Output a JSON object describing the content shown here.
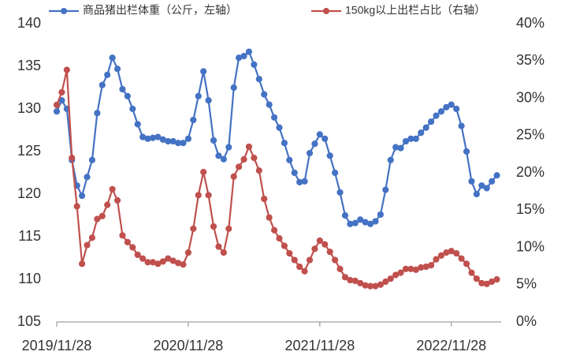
{
  "chart_data": {
    "type": "line",
    "categories": [
      "2019/11/28",
      null,
      null,
      null,
      null,
      null,
      null,
      null,
      null,
      null,
      null,
      null,
      null,
      null,
      null,
      null,
      null,
      null,
      null,
      null,
      null,
      null,
      null,
      null,
      null,
      null,
      "2020/11/28",
      null,
      null,
      null,
      null,
      null,
      null,
      null,
      null,
      null,
      null,
      null,
      null,
      null,
      null,
      null,
      null,
      null,
      null,
      null,
      null,
      null,
      null,
      null,
      null,
      null,
      "2021/11/28",
      null,
      null,
      null,
      null,
      null,
      null,
      null,
      null,
      null,
      null,
      null,
      null,
      null,
      null,
      null,
      null,
      null,
      null,
      null,
      null,
      null,
      null,
      null,
      null,
      null,
      "2022/11/28",
      null,
      null,
      null,
      null,
      null,
      null,
      null,
      null,
      null
    ],
    "series": [
      {
        "name": "商品猪出栏体重（公斤，左轴）",
        "color": "#4472c4",
        "axis": "y",
        "values": [
          129.7,
          131,
          130,
          124,
          121,
          119.8,
          122,
          124,
          129.5,
          132.8,
          134,
          136,
          134.7,
          132.3,
          131.5,
          130,
          128.2,
          126.7,
          126.5,
          126.6,
          126.7,
          126.4,
          126.2,
          126.2,
          126,
          126,
          126.5,
          128.7,
          131.5,
          134.4,
          131,
          126.3,
          124.5,
          124.1,
          125.5,
          132.5,
          136,
          136.2,
          136.7,
          135.2,
          133.5,
          131.7,
          130.5,
          129,
          127.8,
          126,
          124,
          122.5,
          121.4,
          121.5,
          124.8,
          125.9,
          127,
          126.5,
          124.5,
          122.5,
          120.2,
          117.5,
          116.5,
          116.6,
          117,
          116.7,
          116.5,
          116.8,
          117.6,
          120.5,
          124,
          125.5,
          125.4,
          126.2,
          126.5,
          126.5,
          127.2,
          127.8,
          128.5,
          129.2,
          129.7,
          130.2,
          130.5,
          130,
          128,
          125,
          121.5,
          120,
          121,
          120.7,
          121.5,
          122.2
        ]
      },
      {
        "name": "150kg以上出栏占比（右轴）",
        "color": "#c0504d",
        "axis": "y2",
        "values": [
          29.1,
          30.8,
          33.8,
          22,
          15.5,
          7.8,
          10.3,
          11.3,
          13.8,
          14.2,
          15.7,
          17.8,
          16.3,
          11.6,
          10.7,
          10,
          9,
          8.5,
          8,
          8,
          7.8,
          8.1,
          8.5,
          8.2,
          7.9,
          7.7,
          9.3,
          12.5,
          17,
          20.1,
          17,
          12.8,
          10.1,
          9.3,
          12.5,
          19.5,
          20.8,
          21.8,
          23.5,
          22,
          20.3,
          16.5,
          14,
          12.3,
          11.2,
          10.2,
          9.2,
          8.3,
          7.4,
          6.8,
          8.3,
          9.8,
          10.9,
          10.4,
          9.4,
          8.3,
          7.1,
          6,
          5.6,
          5.5,
          5.2,
          4.9,
          4.8,
          4.8,
          5,
          5.4,
          5.8,
          6.3,
          6.6,
          7.1,
          7.1,
          7,
          7.3,
          7.4,
          7.6,
          8.4,
          8.9,
          9.3,
          9.5,
          9.2,
          8.5,
          7.8,
          6.6,
          5.8,
          5.2,
          5.1,
          5.4,
          5.7
        ]
      }
    ],
    "ylim": [
      105,
      140
    ],
    "yticks": [
      105,
      110,
      115,
      120,
      125,
      130,
      135,
      140
    ],
    "y2lim": [
      0,
      40
    ],
    "y2ticks": [
      {
        "value": 0,
        "label": "0%"
      },
      {
        "value": 5,
        "label": "5%"
      },
      {
        "value": 10,
        "label": "10%"
      },
      {
        "value": 15,
        "label": "15%"
      },
      {
        "value": 20,
        "label": "20%"
      },
      {
        "value": 25,
        "label": "25%"
      },
      {
        "value": 30,
        "label": "30%"
      },
      {
        "value": 35,
        "label": "35%"
      },
      {
        "value": 40,
        "label": "40%"
      }
    ],
    "grid": false,
    "legend": "top"
  }
}
